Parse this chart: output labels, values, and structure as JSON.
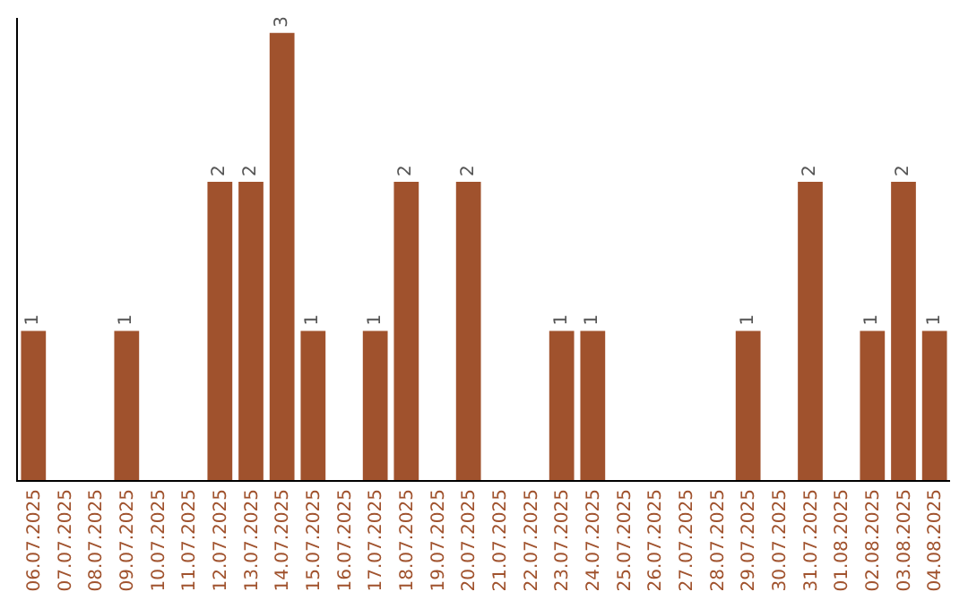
{
  "chart_data": {
    "type": "bar",
    "categories": [
      "06.07.2025",
      "07.07.2025",
      "08.07.2025",
      "09.07.2025",
      "10.07.2025",
      "11.07.2025",
      "12.07.2025",
      "13.07.2025",
      "14.07.2025",
      "15.07.2025",
      "16.07.2025",
      "17.07.2025",
      "18.07.2025",
      "19.07.2025",
      "20.07.2025",
      "21.07.2025",
      "22.07.2025",
      "23.07.2025",
      "24.07.2025",
      "25.07.2025",
      "26.07.2025",
      "27.07.2025",
      "28.07.2025",
      "29.07.2025",
      "30.07.2025",
      "31.07.2025",
      "01.08.2025",
      "02.08.2025",
      "03.08.2025",
      "04.08.2025"
    ],
    "values": [
      1,
      0,
      0,
      1,
      0,
      0,
      2,
      2,
      3,
      1,
      0,
      1,
      2,
      0,
      2,
      0,
      0,
      1,
      1,
      0,
      0,
      0,
      0,
      1,
      0,
      2,
      0,
      1,
      2,
      1
    ],
    "value_labels": [
      "1",
      null,
      null,
      "1",
      null,
      null,
      "2",
      "2",
      "3",
      "1",
      null,
      "1",
      "2",
      null,
      "2",
      null,
      null,
      "1",
      "1",
      null,
      null,
      null,
      null,
      "1",
      null,
      "2",
      null,
      "1",
      "2",
      "1"
    ],
    "color": "#a0522d",
    "ylim": [
      0,
      3.1
    ],
    "tick_labels": "x"
  }
}
